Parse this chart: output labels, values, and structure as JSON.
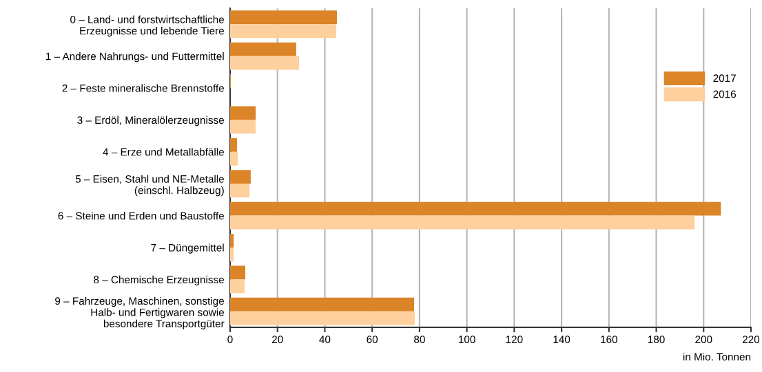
{
  "chart_data": {
    "type": "bar",
    "orientation": "horizontal",
    "xlabel": "in Mio. Tonnen",
    "categories": [
      "0 – Land- und forstwirtschaftliche\nErzeugnisse und lebende Tiere",
      "1 – Andere Nahrungs- und Futtermittel",
      "2 – Feste mineralische Brennstoffe",
      "3 – Erdöl, Mineralölerzeugnisse",
      "4 – Erze und Metallabfälle",
      "5 – Eisen, Stahl und NE-Metalle\n(einschl. Halbzeug)",
      "6 – Steine und Erden und Baustoffe",
      "7 – Düngemittel",
      "8 – Chemische Erzeugnisse",
      "9 – Fahrzeuge, Maschinen, sonstige\nHalb- und Fertigwaren sowie\nbesondere Transportgüter"
    ],
    "series": [
      {
        "name": "2017",
        "color": "#db8428",
        "values": [
          45.1,
          27.9,
          0.3,
          10.8,
          2.9,
          8.7,
          207.3,
          1.5,
          6.4,
          77.7
        ]
      },
      {
        "name": "2016",
        "color": "#fdd09d",
        "values": [
          44.8,
          29.1,
          null,
          10.8,
          3.2,
          8.2,
          196.2,
          1.5,
          6.1,
          78.0
        ]
      }
    ],
    "xlim": [
      0,
      220
    ],
    "xticks": [
      0,
      20,
      40,
      60,
      80,
      100,
      120,
      140,
      160,
      180,
      200,
      220
    ],
    "grid": "x",
    "legend": "top right"
  }
}
